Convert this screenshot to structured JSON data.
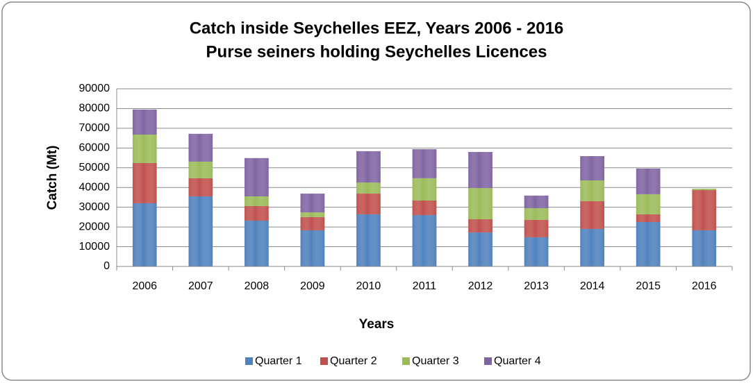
{
  "chart_data": {
    "type": "stacked_bar",
    "title": "Catch inside Seychelles EEZ, Years 2006 - 2016",
    "subtitle": "Purse seiners holding Seychelles Licences",
    "x_label": "Years",
    "y_label": "Catch (Mt)",
    "categories": [
      "2006",
      "2007",
      "2008",
      "2009",
      "2010",
      "2011",
      "2012",
      "2013",
      "2014",
      "2015",
      "2016"
    ],
    "series": [
      {
        "name": "Quarter 1",
        "color": "#4f81bd",
        "values": [
          32000,
          35500,
          23200,
          18300,
          26400,
          26000,
          17200,
          14800,
          19000,
          22500,
          18300
        ]
      },
      {
        "name": "Quarter 2",
        "color": "#c0504d",
        "values": [
          20400,
          9200,
          7400,
          6700,
          10500,
          7400,
          6700,
          8800,
          14100,
          3900,
          20400
        ]
      },
      {
        "name": "Quarter 3",
        "color": "#9bbb59",
        "values": [
          14400,
          8400,
          4900,
          2400,
          5600,
          11300,
          15800,
          5900,
          10500,
          10200,
          700
        ]
      },
      {
        "name": "Quarter 4",
        "color": "#8064a2",
        "values": [
          12700,
          14100,
          19400,
          9500,
          15900,
          14700,
          18300,
          6400,
          12300,
          13000,
          0
        ]
      }
    ],
    "ylim": [
      0,
      90000
    ],
    "yticks": [
      0,
      10000,
      20000,
      30000,
      40000,
      50000,
      60000,
      70000,
      80000,
      90000
    ],
    "grid": true,
    "legend": "bottom"
  }
}
